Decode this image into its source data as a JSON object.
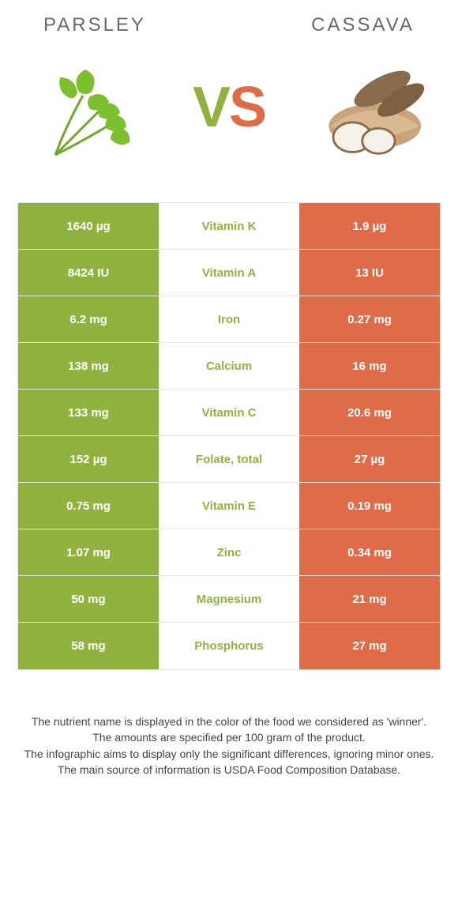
{
  "colors": {
    "left_bg": "#8fb33e",
    "right_bg": "#df6b49",
    "winner_left": "#8fb33e",
    "winner_right": "#df6b49",
    "title_text": "#6a6a6a",
    "cell_text": "#ffffff"
  },
  "header": {
    "left_title": "Parsley",
    "right_title": "cassava"
  },
  "vs": {
    "v": "V",
    "s": "S"
  },
  "rows": [
    {
      "left": "1640 µg",
      "label": "Vitamin K",
      "right": "1.9 µg",
      "winner": "left"
    },
    {
      "left": "8424 IU",
      "label": "Vitamin A",
      "right": "13 IU",
      "winner": "left"
    },
    {
      "left": "6.2 mg",
      "label": "Iron",
      "right": "0.27 mg",
      "winner": "left"
    },
    {
      "left": "138 mg",
      "label": "Calcium",
      "right": "16 mg",
      "winner": "left"
    },
    {
      "left": "133 mg",
      "label": "Vitamin C",
      "right": "20.6 mg",
      "winner": "left"
    },
    {
      "left": "152 µg",
      "label": "Folate, total",
      "right": "27 µg",
      "winner": "left"
    },
    {
      "left": "0.75 mg",
      "label": "Vitamin E",
      "right": "0.19 mg",
      "winner": "left"
    },
    {
      "left": "1.07 mg",
      "label": "Zinc",
      "right": "0.34 mg",
      "winner": "left"
    },
    {
      "left": "50 mg",
      "label": "Magnesium",
      "right": "21 mg",
      "winner": "left"
    },
    {
      "left": "58 mg",
      "label": "Phosphorus",
      "right": "27 mg",
      "winner": "left"
    }
  ],
  "footnotes": {
    "line1": "The nutrient name is displayed in the color of the food we considered as 'winner'.",
    "line2": "The amounts are specified per 100 gram of the product.",
    "line3": "The infographic aims to display only the significant differences, ignoring minor ones.",
    "line4": "The main source of information is USDA Food Composition Database."
  }
}
